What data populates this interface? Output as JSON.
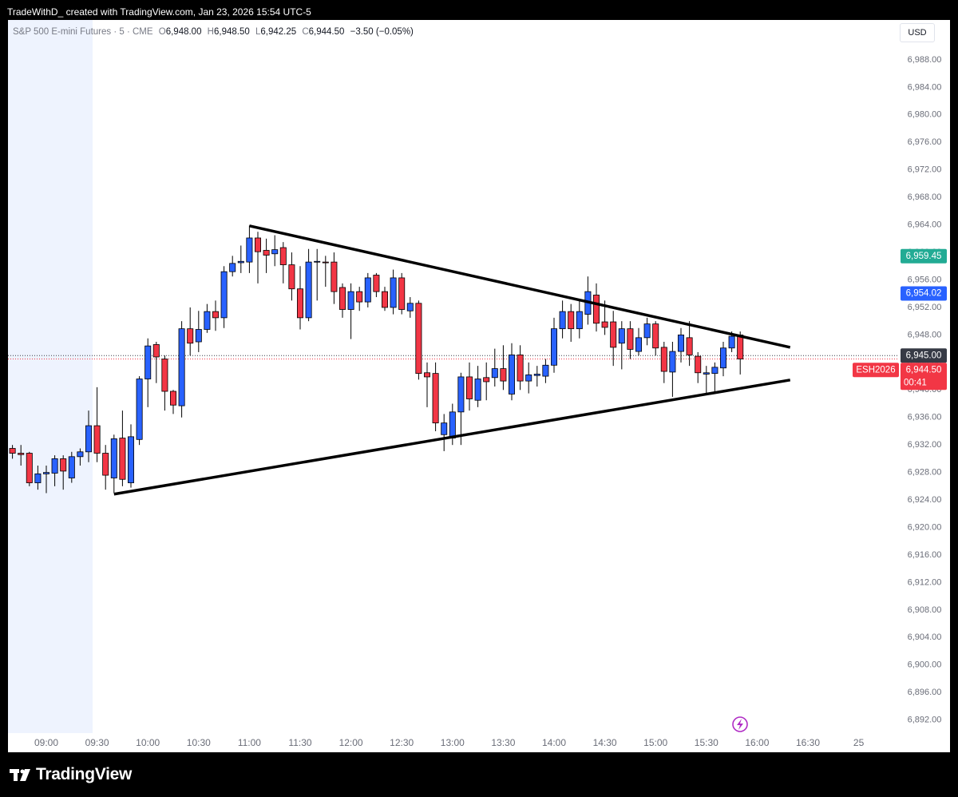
{
  "chart_data": {
    "type": "candlestick",
    "attribution": "TradeWithD_ created with TradingView.com, Jan 23, 2026 15:54 UTC-5",
    "legend": {
      "symbol": "S&P 500 E-mini Futures · 5 · CME",
      "open_key": "O",
      "open": "6,948.00",
      "high_key": "H",
      "high": "6,948.50",
      "low_key": "L",
      "low": "6,942.25",
      "close_key": "C",
      "close": "6,944.50",
      "change": "−3.50 (−0.05%)"
    },
    "currency": "USD",
    "branding": "TradingView",
    "up_color": "#2962ff",
    "down_color": "#f23645",
    "categories": [
      null,
      null,
      null,
      null,
      "09:00",
      null,
      null,
      null,
      null,
      null,
      "09:30",
      null,
      null,
      null,
      null,
      null,
      "10:00",
      null,
      null,
      null,
      null,
      null,
      "10:30",
      null,
      null,
      null,
      null,
      null,
      "11:00",
      null,
      null,
      null,
      null,
      null,
      "11:30",
      null,
      null,
      null,
      null,
      null,
      "12:00",
      null,
      null,
      null,
      null,
      null,
      "12:30",
      null,
      null,
      null,
      null,
      null,
      "13:00",
      null,
      null,
      null,
      null,
      null,
      "13:30",
      null,
      null,
      null,
      null,
      null,
      "14:00",
      null,
      null,
      null,
      null,
      null,
      "14:30",
      null,
      null,
      null,
      null,
      null,
      "15:00",
      null,
      null,
      null,
      null,
      null,
      "15:30",
      null,
      null,
      null,
      null,
      null,
      "16:00",
      null,
      null,
      null,
      null,
      null,
      "16:30",
      null,
      null,
      null,
      null,
      null,
      "25"
    ],
    "open": [
      6931.5,
      6930.8,
      6930.8,
      6926.5,
      6927.8,
      6927.9,
      6930,
      6927.2,
      6930.3,
      6931,
      6934.8,
      6930.8,
      6927.2,
      6933,
      6926.5,
      6932.8,
      6941.6,
      6946.6,
      6944.5,
      6939.8,
      6937.7,
      6948.9,
      6947,
      6948.8,
      6951.4,
      6950.5,
      6957.2,
      6958.5,
      6958.6,
      6962.1,
      6960.3,
      6959.8,
      6960.7,
      6958.2,
      6954.7,
      6950.5,
      6958.6,
      6958.6,
      6958.6,
      6954.9,
      6951.7,
      6954.3,
      6952.8,
      6956.7,
      6954.3,
      6952,
      6956.3,
      6951.5,
      6952.6,
      6942.5,
      6942.4,
      6933.5,
      6933,
      6936.8,
      6941.9,
      6938.5,
      6941.8,
      6941.8,
      6943.1,
      6939.4,
      6945.1,
      6941.3,
      6942.1,
      6942,
      6943.6,
      6948.9,
      6951.4,
      6948.9,
      6951,
      6953.8,
      6949.9,
      6949.9,
      6946.8,
      6948.9,
      6945.6,
      6947.6,
      6949.6,
      6946.2,
      6942.6,
      6945.6,
      6947.6,
      6944.9,
      6942.3,
      6942.4,
      6943.2,
      6946.1,
      6948,
      null,
      null,
      null,
      null,
      null,
      null,
      null,
      null,
      null,
      null,
      null,
      null,
      null,
      null
    ],
    "high": [
      6932,
      6932,
      6931,
      6929,
      6929,
      6930.5,
      6930.5,
      6931,
      6931.5,
      6937,
      6940.4,
      6932,
      6933.5,
      6937,
      6935,
      6942,
      6947.5,
      6947,
      6945,
      6940,
      6950,
      6952,
      6951.5,
      6952.5,
      6953,
      6958,
      6959.5,
      6961,
      6963.9,
      6963,
      6962,
      6962.5,
      6961.5,
      6960,
      6958,
      6960.5,
      6960.5,
      6959.5,
      6960,
      6955.5,
      6955.5,
      6955,
      6957,
      6957,
      6955,
      6957.5,
      6957,
      6953.5,
      6953,
      6944,
      6944,
      6936.5,
      6938,
      6942.5,
      6944,
      6943.5,
      6944,
      6946,
      6946.5,
      6946.8,
      6946.5,
      6944,
      6943.5,
      6944.5,
      6950.5,
      6953,
      6952.5,
      6953,
      6956.5,
      6955.5,
      6953,
      6951.5,
      6950,
      6950,
      6949,
      6950.5,
      6950,
      6947,
      6947,
      6949,
      6950,
      6945.5,
      6943.5,
      6944,
      6947,
      6948.5,
      6948.5,
      null,
      null,
      null,
      null,
      null,
      null,
      null,
      null,
      null,
      null,
      null,
      null,
      null,
      null
    ],
    "low": [
      6930,
      6929,
      6926,
      6925.5,
      6925,
      6926,
      6925.5,
      6926.5,
      6929,
      6929.5,
      6929.5,
      6925.5,
      6925,
      6926,
      6925.8,
      6932,
      6937.5,
      6941,
      6937,
      6936.5,
      6936,
      6945,
      6945.5,
      6948.3,
      6948.6,
      6949,
      6956.5,
      6957,
      6957,
      6955.5,
      6957,
      6958,
      6955.5,
      6953,
      6948.8,
      6950,
      6953,
      6955,
      6952.5,
      6950.5,
      6947.4,
      6951.5,
      6952,
      6953.5,
      6951.5,
      6951,
      6951,
      6950.5,
      6941.5,
      6937.5,
      6934,
      6931.1,
      6932,
      6932,
      6937,
      6937.5,
      6938.5,
      6940.5,
      6940,
      6938.5,
      6940,
      6939.5,
      6940.5,
      6941,
      6942.5,
      6947.5,
      6947,
      6947.5,
      6949.5,
      6948.5,
      6948,
      6943.5,
      6943,
      6944.5,
      6945,
      6946.5,
      6945,
      6941,
      6939,
      6944,
      6943.5,
      6941,
      6939.5,
      6939.5,
      6942,
      6945.5,
      6942.25,
      null,
      null,
      null,
      null,
      null,
      null,
      null,
      null,
      null,
      null,
      null,
      null,
      null,
      null
    ],
    "close": [
      6930.8,
      6930.6,
      6926.5,
      6927.8,
      6928,
      6930,
      6928.2,
      6930.3,
      6931,
      6934.8,
      6930.8,
      6927.6,
      6932.9,
      6927,
      6933.2,
      6941.6,
      6946.4,
      6944.8,
      6939.8,
      6937.8,
      6948.9,
      6946.8,
      6948.8,
      6951.4,
      6950.5,
      6957.2,
      6958.4,
      6958.7,
      6962.1,
      6960.1,
      6959.6,
      6960.4,
      6958.2,
      6954.7,
      6950.5,
      6958.6,
      6958.7,
      6958.5,
      6954.3,
      6951.7,
      6954.3,
      6952.8,
      6956.3,
      6954.3,
      6952,
      6956.3,
      6951.7,
      6952.6,
      6942.4,
      6941.9,
      6935.2,
      6935.2,
      6936.8,
      6941.9,
      6938.7,
      6941.6,
      6941.2,
      6943.1,
      6941.3,
      6945.1,
      6941.3,
      6942.2,
      6942.3,
      6943.6,
      6948.9,
      6951.4,
      6948.9,
      6951.4,
      6954.3,
      6949.7,
      6949.1,
      6946.2,
      6948.9,
      6945.9,
      6947.6,
      6949.6,
      6946.1,
      6942.7,
      6945.6,
      6948,
      6945.1,
      6942.5,
      6942.5,
      6943.3,
      6946.1,
      6947.8,
      6944.5,
      null,
      null,
      null,
      null,
      null,
      null,
      null,
      null,
      null,
      null,
      null,
      null,
      null,
      null
    ],
    "ylim": [
      6890.1,
      6993.8
    ],
    "yticks": [
      {
        "value": 6892,
        "label": "6,892.00"
      },
      {
        "value": 6896,
        "label": "6,896.00"
      },
      {
        "value": 6900,
        "label": "6,900.00"
      },
      {
        "value": 6904,
        "label": "6,904.00"
      },
      {
        "value": 6908,
        "label": "6,908.00"
      },
      {
        "value": 6912,
        "label": "6,912.00"
      },
      {
        "value": 6916,
        "label": "6,916.00"
      },
      {
        "value": 6920,
        "label": "6,920.00"
      },
      {
        "value": 6924,
        "label": "6,924.00"
      },
      {
        "value": 6928,
        "label": "6,928.00"
      },
      {
        "value": 6932,
        "label": "6,932.00"
      },
      {
        "value": 6936,
        "label": "6,936.00"
      },
      {
        "value": 6940,
        "label": "6,940.00"
      },
      {
        "value": 6944,
        "label": "6,944.00"
      },
      {
        "value": 6948,
        "label": "6,948.00"
      },
      {
        "value": 6952,
        "label": "6,952.00"
      },
      {
        "value": 6956,
        "label": "6,956.00"
      },
      {
        "value": 6960,
        "label": "6,960.00"
      },
      {
        "value": 6964,
        "label": "6,964.00"
      },
      {
        "value": 6968,
        "label": "6,968.00"
      },
      {
        "value": 6972,
        "label": "6,972.00"
      },
      {
        "value": 6976,
        "label": "6,976.00"
      },
      {
        "value": 6980,
        "label": "6,980.00"
      },
      {
        "value": 6984,
        "label": "6,984.00"
      },
      {
        "value": 6988,
        "label": "6,988.00"
      }
    ],
    "price_labels": [
      {
        "value": 6959.45,
        "label": "6,959.45",
        "color": "#22ab94"
      },
      {
        "value": 6954.02,
        "label": "6,954.02",
        "color": "#2962ff"
      },
      {
        "value": 6945,
        "label": "6,945.00",
        "color": "#363a45",
        "dotted": true
      },
      {
        "value": 6944.5,
        "label": "6,944.50",
        "color": "#f23645",
        "dotted": true,
        "symbol": "ESH2026",
        "countdown": "00:41"
      }
    ],
    "trendlines": [
      {
        "x": [
          28,
          91.9
        ],
        "y": [
          6963.86,
          6946.2
        ],
        "color": "#000000"
      },
      {
        "x": [
          12,
          91.9
        ],
        "y": [
          6924.85,
          6941.45
        ],
        "color": "#000000"
      }
    ]
  }
}
